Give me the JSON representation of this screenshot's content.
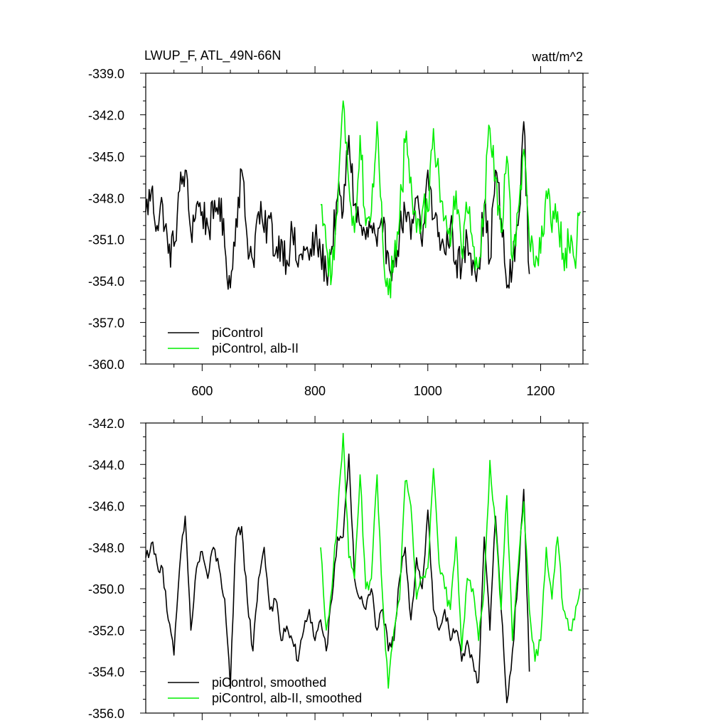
{
  "colors": {
    "control": "#000000",
    "alb": "#00ee00",
    "frame": "#000000"
  },
  "chart_data": [
    {
      "type": "line",
      "title": "LWUP_F, ATL_49N-66N",
      "units": "watt/m^2",
      "xlim": [
        500,
        1275
      ],
      "ylim": [
        -360.0,
        -339.0
      ],
      "xticks": [
        600,
        800,
        1000,
        1200
      ],
      "xtick_labels": [
        "600",
        "800",
        "1000",
        "1200"
      ],
      "yticks": [
        -360,
        -357,
        -354,
        -351,
        -348,
        -345,
        -342,
        -339
      ],
      "ytick_labels": [
        "-360.0",
        "-357.0",
        "-354.0",
        "-351.0",
        "-348.0",
        "-345.0",
        "-342.0",
        "-339.0"
      ],
      "legend_position": "bottom-left",
      "series": [
        {
          "name": "piControl",
          "color": "#000000",
          "x": [
            500,
            510,
            520,
            530,
            540,
            550,
            560,
            570,
            580,
            590,
            600,
            610,
            620,
            630,
            640,
            650,
            660,
            670,
            680,
            690,
            700,
            710,
            720,
            730,
            740,
            750,
            760,
            770,
            780,
            790,
            800,
            810,
            820,
            830,
            840,
            850,
            860,
            870,
            880,
            890,
            900,
            910,
            920,
            930,
            940,
            950,
            960,
            970,
            980,
            990,
            1000,
            1010,
            1020,
            1030,
            1040,
            1050,
            1060,
            1070,
            1080,
            1090,
            1100,
            1110,
            1120,
            1130,
            1140,
            1150,
            1160,
            1170,
            1180
          ],
          "y": [
            -349.0,
            -347.5,
            -350.0,
            -348.5,
            -352.0,
            -351.5,
            -347.5,
            -346.0,
            -350.5,
            -348.5,
            -349.0,
            -350.0,
            -349.5,
            -348.0,
            -351.5,
            -354.5,
            -349.5,
            -346.0,
            -351.0,
            -352.5,
            -349.0,
            -350.5,
            -349.5,
            -352.0,
            -351.0,
            -352.5,
            -350.5,
            -353.0,
            -351.5,
            -352.5,
            -351.0,
            -352.0,
            -353.5,
            -351.5,
            -348.0,
            -349.0,
            -343.5,
            -348.5,
            -350.0,
            -351.0,
            -350.0,
            -351.5,
            -350.5,
            -352.0,
            -353.0,
            -350.5,
            -349.0,
            -351.0,
            -348.0,
            -351.5,
            -346.0,
            -349.5,
            -350.5,
            -352.0,
            -350.0,
            -352.5,
            -353.0,
            -351.0,
            -352.5,
            -353.0,
            -348.5,
            -352.5,
            -346.0,
            -349.5,
            -354.5,
            -353.0,
            -350.0,
            -342.5,
            -353.5
          ]
        },
        {
          "name": "piControl, alb-II",
          "color": "#00ee00",
          "x": [
            810,
            820,
            830,
            840,
            850,
            860,
            870,
            880,
            890,
            900,
            910,
            920,
            930,
            940,
            950,
            960,
            970,
            980,
            990,
            1000,
            1010,
            1020,
            1030,
            1040,
            1050,
            1060,
            1070,
            1080,
            1090,
            1100,
            1110,
            1120,
            1130,
            1140,
            1150,
            1160,
            1170,
            1180,
            1190,
            1200,
            1210,
            1220,
            1230,
            1240,
            1250,
            1260,
            1270
          ],
          "y": [
            -348.5,
            -351.5,
            -353.5,
            -349.0,
            -341.0,
            -347.0,
            -350.5,
            -343.5,
            -350.0,
            -349.0,
            -342.5,
            -351.0,
            -355.0,
            -352.5,
            -349.5,
            -344.0,
            -346.5,
            -350.5,
            -349.0,
            -349.0,
            -343.0,
            -346.5,
            -349.5,
            -351.5,
            -347.5,
            -352.0,
            -349.0,
            -351.5,
            -353.0,
            -348.5,
            -343.0,
            -346.5,
            -350.5,
            -345.0,
            -352.5,
            -349.0,
            -344.5,
            -351.0,
            -353.0,
            -352.0,
            -347.5,
            -350.5,
            -349.0,
            -352.0,
            -351.5,
            -352.5,
            -349.0
          ]
        }
      ]
    },
    {
      "type": "line",
      "title": "",
      "xlim": [
        500,
        1275
      ],
      "ylim": [
        -356.0,
        -342.0
      ],
      "yticks": [
        -356,
        -354,
        -352,
        -350,
        -348,
        -346,
        -344,
        -342
      ],
      "ytick_labels": [
        "-356.0",
        "-354.0",
        "-352.0",
        "-350.0",
        "-348.0",
        "-346.0",
        "-344.0",
        "-342.0"
      ],
      "legend_position": "bottom-left",
      "series": [
        {
          "name": "piControl, smoothed",
          "color": "#000000",
          "x": [
            500,
            510,
            520,
            530,
            540,
            550,
            560,
            570,
            580,
            590,
            600,
            610,
            620,
            630,
            640,
            650,
            660,
            670,
            680,
            690,
            700,
            710,
            720,
            730,
            740,
            750,
            760,
            770,
            780,
            790,
            800,
            810,
            820,
            830,
            840,
            850,
            860,
            870,
            880,
            890,
            900,
            910,
            920,
            930,
            940,
            950,
            960,
            970,
            980,
            990,
            1000,
            1010,
            1020,
            1030,
            1040,
            1050,
            1060,
            1070,
            1080,
            1090,
            1100,
            1110,
            1120,
            1130,
            1140,
            1150,
            1160,
            1170,
            1180
          ],
          "y": [
            -348.5,
            -347.8,
            -348.8,
            -349.0,
            -351.5,
            -353.2,
            -349.0,
            -346.5,
            -352.0,
            -349.0,
            -348.2,
            -349.5,
            -348.0,
            -349.0,
            -350.5,
            -354.8,
            -347.5,
            -347.0,
            -350.5,
            -353.0,
            -349.5,
            -348.0,
            -351.0,
            -350.5,
            -352.5,
            -351.8,
            -352.5,
            -353.5,
            -352.0,
            -351.0,
            -352.5,
            -351.5,
            -353.0,
            -350.5,
            -347.5,
            -347.5,
            -343.5,
            -349.5,
            -350.5,
            -351.0,
            -350.0,
            -352.0,
            -351.0,
            -353.0,
            -352.5,
            -349.5,
            -348.0,
            -351.5,
            -348.5,
            -350.0,
            -346.2,
            -351.0,
            -352.0,
            -351.0,
            -352.5,
            -352.0,
            -353.5,
            -352.5,
            -353.5,
            -354.5,
            -347.5,
            -352.0,
            -346.5,
            -351.0,
            -355.5,
            -353.0,
            -349.5,
            -345.2,
            -354.0
          ]
        },
        {
          "name": "piControl, alb-II, smoothed",
          "color": "#00ee00",
          "x": [
            810,
            820,
            830,
            840,
            850,
            860,
            870,
            880,
            890,
            900,
            910,
            920,
            930,
            940,
            950,
            960,
            970,
            980,
            990,
            1000,
            1010,
            1020,
            1030,
            1040,
            1050,
            1060,
            1070,
            1080,
            1090,
            1100,
            1110,
            1120,
            1130,
            1140,
            1150,
            1160,
            1170,
            1180,
            1190,
            1200,
            1210,
            1220,
            1230,
            1240,
            1250,
            1260,
            1270
          ],
          "y": [
            -348.0,
            -352.0,
            -350.0,
            -346.5,
            -342.5,
            -348.5,
            -349.5,
            -344.5,
            -350.0,
            -349.5,
            -344.5,
            -350.5,
            -354.8,
            -352.0,
            -350.5,
            -344.8,
            -346.0,
            -350.5,
            -349.5,
            -349.0,
            -344.2,
            -348.8,
            -350.0,
            -351.0,
            -347.5,
            -353.0,
            -349.5,
            -350.0,
            -352.5,
            -350.0,
            -343.8,
            -347.0,
            -351.0,
            -345.5,
            -352.5,
            -349.0,
            -345.8,
            -351.0,
            -353.5,
            -352.5,
            -348.0,
            -350.5,
            -347.5,
            -351.0,
            -352.0,
            -351.5,
            -350.0
          ]
        }
      ]
    }
  ]
}
